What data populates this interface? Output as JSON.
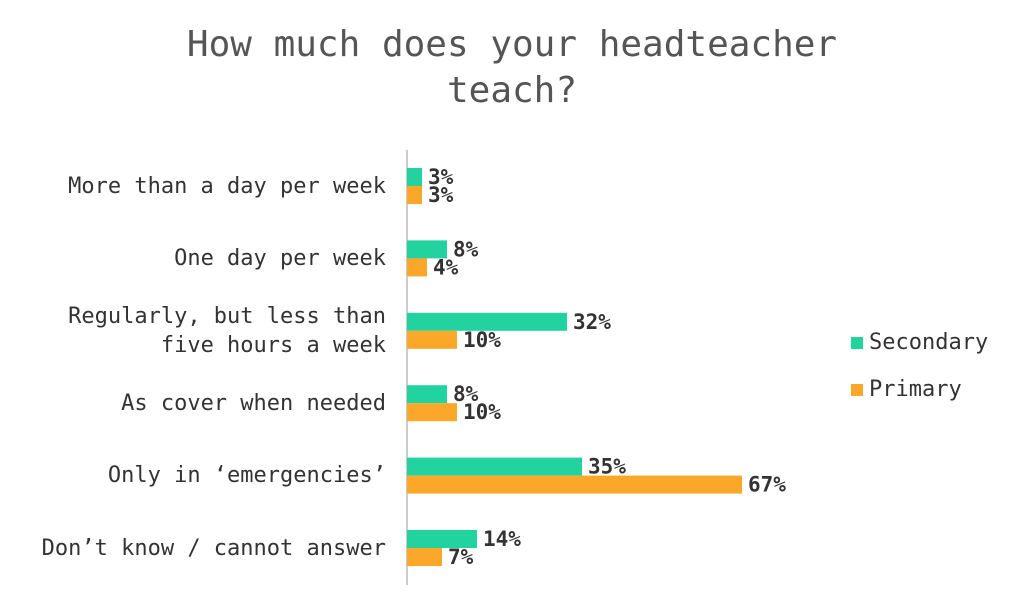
{
  "chart_data": {
    "type": "barh",
    "title": "How much does your headteacher teach?",
    "categories": [
      "More than a day per week",
      "One day per week",
      "Regularly, but less than five hours a week",
      "As cover when needed",
      "Only in ‘emergencies’",
      "Don’t know / cannot answer"
    ],
    "series": [
      {
        "name": "Secondary",
        "color": "#22d3a0",
        "values": [
          3,
          8,
          32,
          8,
          35,
          14
        ],
        "value_labels": [
          "3%",
          "8%",
          "32%",
          "8%",
          "35%",
          "14%"
        ]
      },
      {
        "name": "Primary",
        "color": "#fba82a",
        "values": [
          3,
          4,
          10,
          10,
          67,
          7
        ],
        "value_labels": [
          "3%",
          "4%",
          "10%",
          "10%",
          "67%",
          "7%"
        ]
      }
    ],
    "legend": "right"
  }
}
